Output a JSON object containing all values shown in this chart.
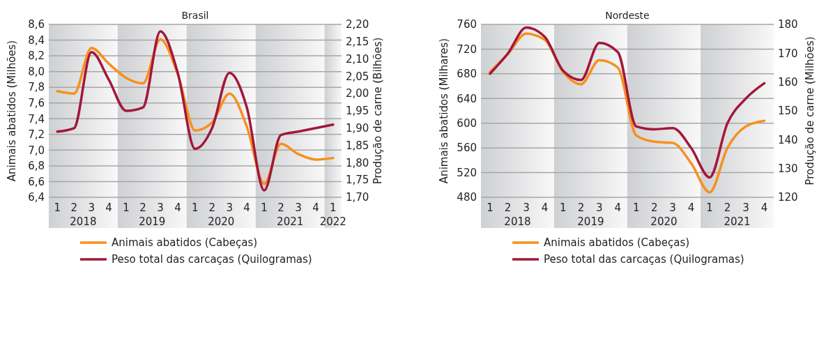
{
  "chart_data": [
    {
      "type": "line",
      "title": "Brasil",
      "ylabel": "Animais abatidos (Milhões)",
      "y2label": "Produção de carne (Bilhões)",
      "x": [
        "2018-02-15",
        "2018-05-15",
        "2018-08-15",
        "2018-11-15",
        "2019-02-15",
        "2019-05-15",
        "2019-08-15",
        "2019-11-15",
        "2020-02-15",
        "2020-05-15",
        "2020-08-15",
        "2020-11-15",
        "2021-02-15",
        "2021-05-15",
        "2021-08-15",
        "2021-11-15",
        "2022-02-15"
      ],
      "xlim": [
        "2018-01-01",
        "2022-04-01"
      ],
      "xticks": [
        {
          "value": "2018-02-15",
          "label": "1"
        },
        {
          "value": "2018-05-15",
          "label": "2"
        },
        {
          "value": "2018-08-15",
          "label": "3"
        },
        {
          "value": "2018-11-15",
          "label": "4"
        },
        {
          "value": "2019-02-15",
          "label": "1"
        },
        {
          "value": "2019-05-15",
          "label": "2"
        },
        {
          "value": "2019-08-15",
          "label": "3"
        },
        {
          "value": "2019-11-15",
          "label": "4"
        },
        {
          "value": "2020-02-15",
          "label": "1"
        },
        {
          "value": "2020-05-15",
          "label": "2"
        },
        {
          "value": "2020-08-15",
          "label": "3"
        },
        {
          "value": "2020-11-15",
          "label": "4"
        },
        {
          "value": "2021-02-15",
          "label": "1"
        },
        {
          "value": "2021-05-15",
          "label": "2"
        },
        {
          "value": "2021-08-15",
          "label": "3"
        },
        {
          "value": "2021-11-15",
          "label": "4"
        },
        {
          "value": "2022-02-15",
          "label": "1"
        }
      ],
      "bands": [
        {
          "axis": "x",
          "from": "2018-01-01",
          "to": "2019-01-01",
          "label": "2018",
          "color": "#cfd0d3"
        },
        {
          "axis": "x",
          "from": "2019-01-01",
          "to": "2020-01-01",
          "label": "2019",
          "color": "#cfd0d3"
        },
        {
          "axis": "x",
          "from": "2020-01-01",
          "to": "2021-01-01",
          "label": "2020",
          "color": "#cfd0d3"
        },
        {
          "axis": "x",
          "from": "2021-01-01",
          "to": "2022-01-01",
          "label": "2021",
          "color": "#cfd0d3"
        },
        {
          "axis": "x",
          "from": "2022-01-01",
          "to": "2022-04-01",
          "label": "2022",
          "color": "#cfd0d3"
        }
      ],
      "series": [
        {
          "name": "Animais abatidos (Cabeças)",
          "color": "#f7901e",
          "values": [
            7.75,
            7.72,
            8.3,
            8.1,
            7.92,
            7.85,
            8.41,
            7.97,
            7.25,
            7.35,
            7.72,
            7.3,
            6.57,
            7.08,
            6.95,
            6.88,
            6.9
          ]
        },
        {
          "name": "Peso total das carcaças (Quilogramas)",
          "color": "#a3173a",
          "axis": "y2",
          "values": [
            1.89,
            1.9,
            2.12,
            2.04,
            1.95,
            1.96,
            2.18,
            2.06,
            1.84,
            1.9,
            2.06,
            1.96,
            1.72,
            1.88,
            1.89,
            1.9,
            1.91
          ]
        }
      ],
      "ylim": [
        6.4,
        8.6
      ],
      "yticks": [
        {
          "value": 6.4,
          "label": "6,4"
        },
        {
          "value": 6.6,
          "label": "6,6"
        },
        {
          "value": 6.8,
          "label": "6,8"
        },
        {
          "value": 7.0,
          "label": "7,0"
        },
        {
          "value": 7.2,
          "label": "7,2"
        },
        {
          "value": 7.4,
          "label": "7,4"
        },
        {
          "value": 7.6,
          "label": "7,6"
        },
        {
          "value": 7.8,
          "label": "7,8"
        },
        {
          "value": 8.0,
          "label": "8,0"
        },
        {
          "value": 8.2,
          "label": "8,2"
        },
        {
          "value": 8.4,
          "label": "8,4"
        },
        {
          "value": 8.6,
          "label": "8,6"
        }
      ],
      "y2lim": [
        1.7,
        2.2
      ],
      "y2ticks": [
        {
          "value": 1.7,
          "label": "1,70"
        },
        {
          "value": 1.75,
          "label": "1,75"
        },
        {
          "value": 1.8,
          "label": "1,80"
        },
        {
          "value": 1.85,
          "label": "1,85"
        },
        {
          "value": 1.9,
          "label": "1,90"
        },
        {
          "value": 1.95,
          "label": "1,95"
        },
        {
          "value": 2.0,
          "label": "2,00"
        },
        {
          "value": 2.05,
          "label": "2,05"
        },
        {
          "value": 2.1,
          "label": "2,10"
        },
        {
          "value": 2.15,
          "label": "2,15"
        },
        {
          "value": 2.2,
          "label": "2,20"
        }
      ],
      "grid": "y",
      "legend": "bottom",
      "line_style": "solid"
    },
    {
      "type": "line",
      "title": "Nordeste",
      "ylabel": "Animais abatidos (Milhares)",
      "y2label": "Produção de carne (Milhões)",
      "x": [
        "2018-02-15",
        "2018-05-15",
        "2018-08-15",
        "2018-11-15",
        "2019-02-15",
        "2019-05-15",
        "2019-08-15",
        "2019-11-15",
        "2020-02-15",
        "2020-05-15",
        "2020-08-15",
        "2020-11-15",
        "2021-02-15",
        "2021-05-15",
        "2021-08-15",
        "2021-11-15"
      ],
      "xlim": [
        "2018-01-01",
        "2022-01-01"
      ],
      "xticks": [
        {
          "value": "2018-02-15",
          "label": "1"
        },
        {
          "value": "2018-05-15",
          "label": "2"
        },
        {
          "value": "2018-08-15",
          "label": "3"
        },
        {
          "value": "2018-11-15",
          "label": "4"
        },
        {
          "value": "2019-02-15",
          "label": "1"
        },
        {
          "value": "2019-05-15",
          "label": "2"
        },
        {
          "value": "2019-08-15",
          "label": "3"
        },
        {
          "value": "2019-11-15",
          "label": "4"
        },
        {
          "value": "2020-02-15",
          "label": "1"
        },
        {
          "value": "2020-05-15",
          "label": "2"
        },
        {
          "value": "2020-08-15",
          "label": "3"
        },
        {
          "value": "2020-11-15",
          "label": "4"
        },
        {
          "value": "2021-02-15",
          "label": "1"
        },
        {
          "value": "2021-05-15",
          "label": "2"
        },
        {
          "value": "2021-08-15",
          "label": "3"
        },
        {
          "value": "2021-11-15",
          "label": "4"
        }
      ],
      "bands": [
        {
          "axis": "x",
          "from": "2018-01-01",
          "to": "2019-01-01",
          "label": "2018",
          "color": "#cfd0d3"
        },
        {
          "axis": "x",
          "from": "2019-01-01",
          "to": "2020-01-01",
          "label": "2019",
          "color": "#cfd0d3"
        },
        {
          "axis": "x",
          "from": "2020-01-01",
          "to": "2021-01-01",
          "label": "2020",
          "color": "#cfd0d3"
        },
        {
          "axis": "x",
          "from": "2021-01-01",
          "to": "2022-01-01",
          "label": "2021",
          "color": "#cfd0d3"
        }
      ],
      "series": [
        {
          "name": "Animais abatidos (Cabeças)",
          "color": "#f7901e",
          "values": [
            683,
            712,
            745,
            735,
            683,
            663,
            702,
            690,
            580,
            570,
            568,
            535,
            488,
            560,
            595,
            604
          ]
        },
        {
          "name": "Peso total das carcaças (Quilogramas)",
          "color": "#a3173a",
          "axis": "y2",
          "values": [
            162.9,
            169.9,
            178.9,
            175.7,
            163.9,
            160.7,
            173.6,
            170.4,
            144.6,
            143.6,
            144,
            137.1,
            126.9,
            145.7,
            154.3,
            159.6
          ]
        }
      ],
      "ylim": [
        480,
        760
      ],
      "yticks": [
        480,
        520,
        560,
        600,
        640,
        680,
        720,
        760
      ],
      "y2lim": [
        120,
        180
      ],
      "y2ticks": [
        120,
        130,
        140,
        150,
        160,
        170,
        180
      ],
      "grid": "y",
      "legend": "bottom",
      "line_style": "solid"
    }
  ]
}
